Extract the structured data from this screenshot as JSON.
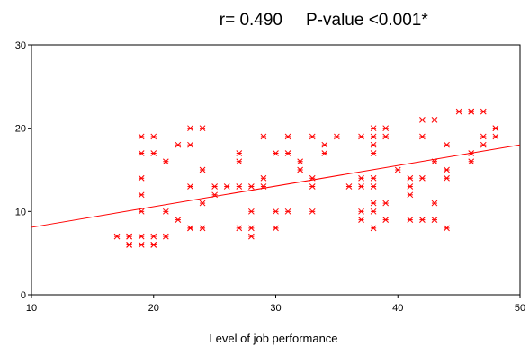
{
  "chart_data": {
    "type": "scatter",
    "title_r": "r= 0.490",
    "title_p": "P-value <0.001*",
    "xlabel": "Level of job performance",
    "ylabel": "",
    "xlim": [
      10,
      50
    ],
    "ylim": [
      0,
      30
    ],
    "x_ticks": [
      10,
      20,
      30,
      40,
      50
    ],
    "y_ticks": [
      0,
      10,
      20,
      30
    ],
    "grid": false,
    "marker": "asterisk",
    "colors": {
      "points": "#ff0000",
      "fit_line": "#ff0000",
      "axes": "#000000"
    },
    "fit_line": {
      "x": [
        10,
        50
      ],
      "y": [
        8.1,
        18.0
      ]
    },
    "points": [
      [
        17,
        7
      ],
      [
        18,
        7
      ],
      [
        18,
        6
      ],
      [
        18,
        6
      ],
      [
        18,
        7
      ],
      [
        19,
        19
      ],
      [
        19,
        17
      ],
      [
        19,
        14
      ],
      [
        19,
        12
      ],
      [
        19,
        10
      ],
      [
        19,
        7
      ],
      [
        19,
        6
      ],
      [
        20,
        19
      ],
      [
        20,
        17
      ],
      [
        20,
        7
      ],
      [
        20,
        6
      ],
      [
        20,
        6
      ],
      [
        21,
        16
      ],
      [
        21,
        10
      ],
      [
        21,
        7
      ],
      [
        22,
        18
      ],
      [
        22,
        9
      ],
      [
        23,
        20
      ],
      [
        23,
        18
      ],
      [
        23,
        13
      ],
      [
        23,
        8
      ],
      [
        23,
        8
      ],
      [
        24,
        20
      ],
      [
        24,
        15
      ],
      [
        24,
        11
      ],
      [
        24,
        8
      ],
      [
        25,
        13
      ],
      [
        25,
        12
      ],
      [
        26,
        13
      ],
      [
        27,
        17
      ],
      [
        27,
        16
      ],
      [
        27,
        13
      ],
      [
        27,
        8
      ],
      [
        28,
        13
      ],
      [
        28,
        10
      ],
      [
        28,
        8
      ],
      [
        28,
        7
      ],
      [
        29,
        19
      ],
      [
        29,
        14
      ],
      [
        29,
        13
      ],
      [
        30,
        17
      ],
      [
        30,
        10
      ],
      [
        30,
        8
      ],
      [
        31,
        19
      ],
      [
        31,
        17
      ],
      [
        31,
        10
      ],
      [
        32,
        16
      ],
      [
        32,
        15
      ],
      [
        33,
        19
      ],
      [
        33,
        14
      ],
      [
        33,
        13
      ],
      [
        33,
        10
      ],
      [
        34,
        18
      ],
      [
        34,
        17
      ],
      [
        35,
        19
      ],
      [
        36,
        13
      ],
      [
        37,
        19
      ],
      [
        37,
        14
      ],
      [
        37,
        13
      ],
      [
        37,
        10
      ],
      [
        37,
        9
      ],
      [
        38,
        20
      ],
      [
        38,
        19
      ],
      [
        38,
        18
      ],
      [
        38,
        17
      ],
      [
        38,
        14
      ],
      [
        38,
        13
      ],
      [
        38,
        11
      ],
      [
        38,
        10
      ],
      [
        38,
        8
      ],
      [
        39,
        20
      ],
      [
        39,
        19
      ],
      [
        39,
        11
      ],
      [
        39,
        9
      ],
      [
        40,
        15
      ],
      [
        41,
        14
      ],
      [
        41,
        13
      ],
      [
        41,
        12
      ],
      [
        41,
        9
      ],
      [
        42,
        21
      ],
      [
        42,
        19
      ],
      [
        42,
        14
      ],
      [
        42,
        9
      ],
      [
        43,
        21
      ],
      [
        43,
        16
      ],
      [
        43,
        11
      ],
      [
        43,
        9
      ],
      [
        44,
        18
      ],
      [
        44,
        15
      ],
      [
        44,
        14
      ],
      [
        44,
        8
      ],
      [
        45,
        22
      ],
      [
        46,
        22
      ],
      [
        46,
        22
      ],
      [
        46,
        17
      ],
      [
        46,
        16
      ],
      [
        47,
        22
      ],
      [
        47,
        19
      ],
      [
        47,
        18
      ],
      [
        48,
        20
      ],
      [
        48,
        20
      ],
      [
        48,
        19
      ]
    ]
  }
}
